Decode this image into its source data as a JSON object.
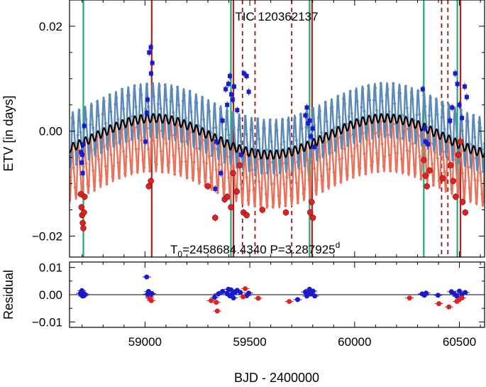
{
  "chart_data": {
    "type": "scatter",
    "title": "TIC 120362137",
    "annotation": {
      "t0_label": "T",
      "t0_subscript": "0",
      "t0_value": "=2458684.4340 P=3.287925",
      "period_superscript": "d"
    },
    "xlabel": "BJD - 2400000",
    "xlim": [
      58640,
      60620
    ],
    "xticks": [
      59000,
      59500,
      60000,
      60500
    ],
    "top_panel": {
      "ylabel": "ETV [in days]",
      "ylim": [
        -0.024,
        0.025
      ],
      "yticks": [
        -0.02,
        0.0,
        0.02
      ],
      "ytick_labels": [
        "−0.02",
        "0.00",
        "0.02"
      ]
    },
    "bottom_panel": {
      "ylabel": "Residual",
      "ylim": [
        -0.012,
        0.012
      ],
      "yticks": [
        -0.01,
        0.0,
        0.01
      ],
      "ytick_labels": [
        "−0.01",
        "0.00",
        "0.01"
      ]
    },
    "colors": {
      "primary_model": "#5b8ab8",
      "secondary_model": "#e8735d",
      "mean_model": "#000000",
      "primary_points": "#1a1acc",
      "secondary_points": "#dd2222",
      "green_lines": "#22aa77",
      "red_lines": "#b22222",
      "dashed_lines": "#8b1a1a"
    },
    "model": {
      "time_span": [
        58640,
        60620
      ],
      "slow_period": 1104,
      "slow_amplitude": 0.0035,
      "slow_phase_peak": 59040,
      "fast_period": 29.4,
      "fast_amplitude": 0.0105,
      "primary_offset": 0.0,
      "secondary_offset": -0.0105,
      "mean_fast_amplitude": 0.0008
    },
    "vertical_lines": {
      "green": [
        58706,
        59410,
        59785,
        60330,
        60490
      ],
      "red": [
        59032,
        59422,
        59797,
        60505
      ],
      "dashed": [
        59465,
        59525,
        59700,
        60415,
        60445
      ]
    },
    "primary_points": [
      [
        58695,
        -0.004
      ],
      [
        58698,
        -0.006
      ],
      [
        58701,
        -0.0045
      ],
      [
        58703,
        -0.008
      ],
      [
        58706,
        -0.0025
      ],
      [
        58710,
        0.001
      ],
      [
        59002,
        -0.002
      ],
      [
        59008,
        0.0035
      ],
      [
        59012,
        0.006
      ],
      [
        59020,
        0.015
      ],
      [
        59028,
        0.016
      ],
      [
        59035,
        0.013
      ],
      [
        59029,
        0.011
      ],
      [
        59335,
        -0.011
      ],
      [
        59340,
        -0.002
      ],
      [
        59362,
        -0.008
      ],
      [
        59370,
        0.002
      ],
      [
        59385,
        0.008
      ],
      [
        59392,
        0.005
      ],
      [
        59398,
        0.009
      ],
      [
        59405,
        0.0105
      ],
      [
        59412,
        0.007
      ],
      [
        59418,
        0.006
      ],
      [
        59425,
        0.0085
      ],
      [
        59440,
        0.004
      ],
      [
        59458,
        -0.0045
      ],
      [
        59472,
        0.011
      ],
      [
        59485,
        0.0105
      ],
      [
        59495,
        0.0075
      ],
      [
        59765,
        0.003
      ],
      [
        59772,
        0.0045
      ],
      [
        59778,
        0.0015
      ],
      [
        59786,
        0.002
      ],
      [
        59792,
        -0.001
      ],
      [
        59800,
        0.0005
      ],
      [
        59808,
        -0.003
      ],
      [
        60325,
        0.008
      ],
      [
        60335,
        0.0005
      ],
      [
        60338,
        -0.002
      ],
      [
        60350,
        -0.0025
      ],
      [
        60455,
        0.002
      ],
      [
        60465,
        0.0045
      ],
      [
        60480,
        0.011
      ],
      [
        60490,
        0.009
      ],
      [
        60500,
        0.005
      ],
      [
        60512,
        0.0025
      ],
      [
        60525,
        0.0085
      ],
      [
        60535,
        0.0065
      ]
    ],
    "secondary_points": [
      [
        58694,
        -0.012
      ],
      [
        58697,
        -0.0145
      ],
      [
        58700,
        -0.016
      ],
      [
        58703,
        -0.0175
      ],
      [
        58706,
        -0.0185
      ],
      [
        58709,
        -0.0155
      ],
      [
        58712,
        -0.0125
      ],
      [
        59018,
        -0.0105
      ],
      [
        59028,
        -0.0095
      ],
      [
        59300,
        -0.0105
      ],
      [
        59335,
        -0.0165
      ],
      [
        59380,
        -0.013
      ],
      [
        59392,
        -0.0125
      ],
      [
        59410,
        -0.0145
      ],
      [
        59420,
        -0.008
      ],
      [
        59438,
        -0.0115
      ],
      [
        59452,
        -0.0065
      ],
      [
        59470,
        -0.0155
      ],
      [
        59485,
        -0.016
      ],
      [
        59560,
        -0.015
      ],
      [
        59672,
        -0.0155
      ],
      [
        59788,
        -0.0155
      ],
      [
        59795,
        -0.0135
      ],
      [
        59801,
        -0.0165
      ],
      [
        60330,
        -0.0055
      ],
      [
        60338,
        -0.0085
      ],
      [
        60345,
        -0.0105
      ],
      [
        60358,
        -0.0075
      ],
      [
        60420,
        -0.009
      ],
      [
        60458,
        -0.0065
      ],
      [
        60470,
        -0.0095
      ],
      [
        60482,
        -0.0125
      ],
      [
        60495,
        -0.0045
      ],
      [
        60505,
        -0.002
      ],
      [
        60515,
        -0.0135
      ],
      [
        60528,
        -0.0155
      ]
    ],
    "primary_residuals": [
      [
        58692,
        0.0005
      ],
      [
        58696,
        0.0
      ],
      [
        58699,
        0.0015
      ],
      [
        58702,
        -0.0005
      ],
      [
        58706,
        0.0005
      ],
      [
        58709,
        -0.0004
      ],
      [
        58712,
        0.0002
      ],
      [
        59008,
        0.0065
      ],
      [
        59012,
        0.0002
      ],
      [
        59017,
        0.0012
      ],
      [
        59022,
        -0.0008
      ],
      [
        59028,
        0.0001
      ],
      [
        59033,
        0.0004
      ],
      [
        59332,
        -0.001
      ],
      [
        59350,
        0.0003
      ],
      [
        59370,
        0.0012
      ],
      [
        59392,
        0.0005
      ],
      [
        59398,
        0.002
      ],
      [
        59404,
        -0.0004
      ],
      [
        59410,
        0.0018
      ],
      [
        59416,
        0.0001
      ],
      [
        59422,
        -0.0012
      ],
      [
        59430,
        0.0009
      ],
      [
        59440,
        0.0016
      ],
      [
        59455,
        0.0008
      ],
      [
        59485,
        -0.0004
      ],
      [
        59495,
        0.0006
      ],
      [
        59728,
        -0.0018
      ],
      [
        59765,
        0.001
      ],
      [
        59772,
        -0.0005
      ],
      [
        59778,
        0.0008
      ],
      [
        59785,
        0.002
      ],
      [
        59792,
        0.0003
      ],
      [
        59802,
        0.0013
      ],
      [
        59810,
        -0.0005
      ],
      [
        60322,
        0.0003
      ],
      [
        60333,
        -0.0002
      ],
      [
        60341,
        0.0006
      ],
      [
        60398,
        -0.0002
      ],
      [
        60462,
        0.0011
      ],
      [
        60475,
        0.0004
      ],
      [
        60488,
        -0.0006
      ],
      [
        60500,
        0.0013
      ],
      [
        60512,
        0.0001
      ],
      [
        60528,
        0.0008
      ]
    ],
    "secondary_residuals": [
      [
        59022,
        -0.0013
      ],
      [
        59030,
        -0.0022
      ],
      [
        59315,
        -0.0022
      ],
      [
        59340,
        -0.0028
      ],
      [
        59345,
        -0.006
      ],
      [
        59468,
        -0.0008
      ],
      [
        59478,
        0.0022
      ],
      [
        59540,
        -0.0013
      ],
      [
        59688,
        -0.0025
      ],
      [
        60262,
        -0.0012
      ],
      [
        60402,
        -0.0033
      ],
      [
        60450,
        -0.0045
      ],
      [
        60488,
        -0.0025
      ],
      [
        60498,
        -0.0018
      ],
      [
        60512,
        -0.0012
      ]
    ]
  }
}
